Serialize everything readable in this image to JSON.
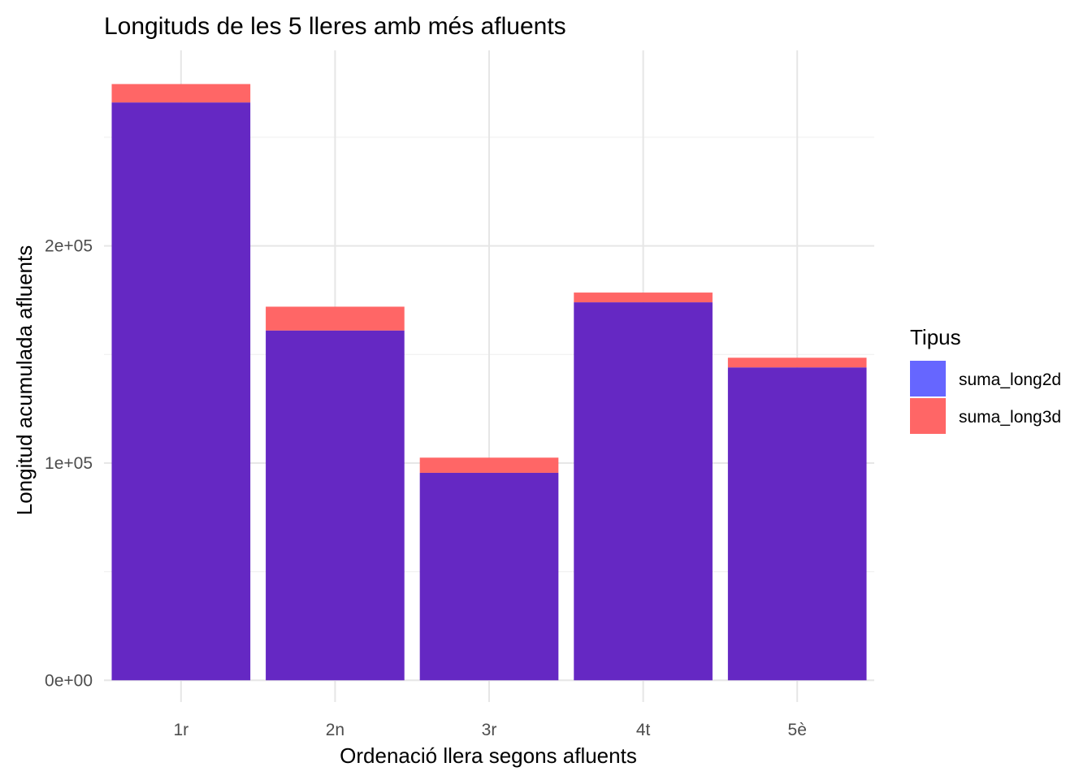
{
  "chart_data": {
    "type": "bar",
    "title": "Longituds de les 5 lleres amb més afluents",
    "xlabel": "Ordenació llera segons afluents",
    "ylabel": "Longitud acumulada afluents",
    "categories": [
      "1r",
      "2n",
      "3r",
      "4t",
      "5è"
    ],
    "series": [
      {
        "name": "suma_long2d",
        "values": [
          266000,
          161000,
          95500,
          174000,
          144000
        ],
        "color": "#6666ff"
      },
      {
        "name": "suma_long3d",
        "values": [
          274500,
          172000,
          102500,
          178500,
          148500
        ],
        "color": "#ff6666"
      }
    ],
    "overlay_color": "#6528c3",
    "ylim": [
      -10000,
      290000
    ],
    "yticks": [
      0,
      100000,
      200000
    ],
    "ytick_labels": [
      "0e+00",
      "1e+05",
      "2e+05"
    ],
    "grid": true,
    "legend": {
      "title": "Tipus",
      "position": "right"
    }
  }
}
